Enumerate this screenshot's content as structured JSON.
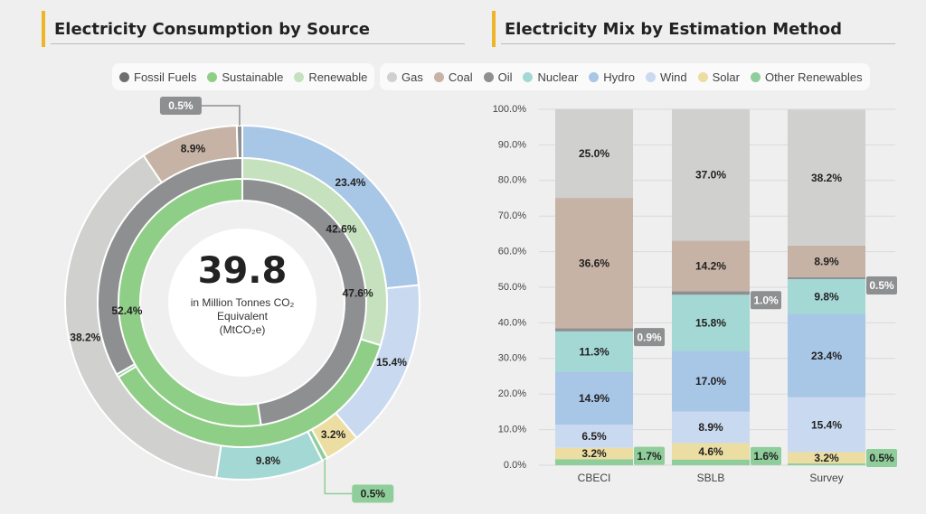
{
  "left_panel": {
    "title": "Electricity Consumption by Source",
    "legend": [
      {
        "label": "Fossil Fuels",
        "color": "#6e6e70"
      },
      {
        "label": "Sustainable",
        "color": "#8fce86"
      },
      {
        "label": "Renewable",
        "color": "#c5e1bd"
      }
    ],
    "center": {
      "value": "39.8",
      "line1": "in Million Tonnes CO₂",
      "line2": "Equivalent",
      "line3": "(MtCO₂e)"
    }
  },
  "right_panel": {
    "title": "Electricity Mix by Estimation Method",
    "legend": [
      {
        "label": "Gas",
        "color": "#d0d0ce"
      },
      {
        "label": "Coal",
        "color": "#c6b3a5"
      },
      {
        "label": "Oil",
        "color": "#8e8f91"
      },
      {
        "label": "Nuclear",
        "color": "#a4d8d5"
      },
      {
        "label": "Hydro",
        "color": "#a8c6e6"
      },
      {
        "label": "Wind",
        "color": "#c9daf0"
      },
      {
        "label": "Solar",
        "color": "#ecdda2"
      },
      {
        "label": "Other Renewables",
        "color": "#8fce9b"
      }
    ]
  },
  "chart_data": [
    {
      "type": "pie",
      "subtype": "donut",
      "title": "Electricity Consumption by Source",
      "total": 39.8,
      "unit": "MtCO₂e",
      "inner_ring": [
        {
          "label": "Fossil Fuels",
          "value": 47.6,
          "color": "#8e8f91"
        },
        {
          "label": "Sustainable",
          "value": 52.4,
          "color": "#8fce86"
        }
      ],
      "middle_ring": [
        {
          "label": "Renewable",
          "value": 42.6,
          "color": "#c5e1bd"
        },
        {
          "label": "Sustainable",
          "value": 52.4,
          "color": "#8fce86",
          "hidden_label": true
        },
        {
          "label": "Other",
          "value": 0.5,
          "color": "#8fce9b"
        },
        {
          "label": "Fossil",
          "value": 47.6,
          "color": "#8e8f91",
          "hidden_label": true
        }
      ],
      "outer_ring": [
        {
          "label": "Hydro",
          "value": 23.4,
          "color": "#a8c6e6"
        },
        {
          "label": "Wind",
          "value": 15.4,
          "color": "#c9daf0"
        },
        {
          "label": "Solar",
          "value": 3.2,
          "color": "#ecdda2"
        },
        {
          "label": "Other Renewables",
          "value": 0.5,
          "color": "#8fce9b"
        },
        {
          "label": "Nuclear",
          "value": 9.8,
          "color": "#a4d8d5"
        },
        {
          "label": "Gas",
          "value": 38.2,
          "color": "#d0d0ce"
        },
        {
          "label": "Coal",
          "value": 8.9,
          "color": "#c6b3a5"
        },
        {
          "label": "Oil",
          "value": 0.5,
          "color": "#8e8f91"
        }
      ]
    },
    {
      "type": "bar",
      "subtype": "stacked",
      "title": "Electricity Mix by Estimation Method",
      "categories": [
        "CBECI",
        "SBLB",
        "Survey"
      ],
      "ylim": [
        0,
        100
      ],
      "yticks": [
        "0.0%",
        "10.0%",
        "20.0%",
        "30.0%",
        "40.0%",
        "50.0%",
        "60.0%",
        "70.0%",
        "80.0%",
        "90.0%",
        "100.0%"
      ],
      "series": [
        {
          "name": "Other Renewables",
          "values": [
            1.7,
            1.6,
            0.5
          ],
          "color": "#8fce9b"
        },
        {
          "name": "Solar",
          "values": [
            3.2,
            4.6,
            3.2
          ],
          "color": "#ecdda2"
        },
        {
          "name": "Wind",
          "values": [
            6.5,
            8.9,
            15.4
          ],
          "color": "#c9daf0"
        },
        {
          "name": "Hydro",
          "values": [
            14.9,
            17.0,
            23.4
          ],
          "color": "#a8c6e6"
        },
        {
          "name": "Nuclear",
          "values": [
            11.3,
            15.8,
            9.8
          ],
          "color": "#a4d8d5"
        },
        {
          "name": "Oil",
          "values": [
            0.9,
            1.0,
            0.5
          ],
          "color": "#8e8f91"
        },
        {
          "name": "Coal",
          "values": [
            36.6,
            14.2,
            8.9
          ],
          "color": "#c6b3a5"
        },
        {
          "name": "Gas",
          "values": [
            25.0,
            37.0,
            38.2
          ],
          "color": "#d0d0ce"
        }
      ],
      "data_labels": {
        "Other Renewables": [
          "1.7%",
          "1.6%",
          "0.5%"
        ],
        "Solar": [
          "3.2%",
          "4.6%",
          "3.2%"
        ],
        "Wind": [
          "6.5%",
          "8.9%",
          "15.4%"
        ],
        "Hydro": [
          "14.9%",
          "17.0%",
          "23.4%"
        ],
        "Nuclear": [
          "11.3%",
          "15.8%",
          "9.8%"
        ],
        "Oil": [
          "0.9%",
          "1.0%",
          "0.5%"
        ],
        "Coal": [
          "36.6%",
          "14.2%",
          "8.9%"
        ],
        "Gas": [
          "25.0%",
          "37.0%",
          "38.2%"
        ]
      }
    }
  ]
}
